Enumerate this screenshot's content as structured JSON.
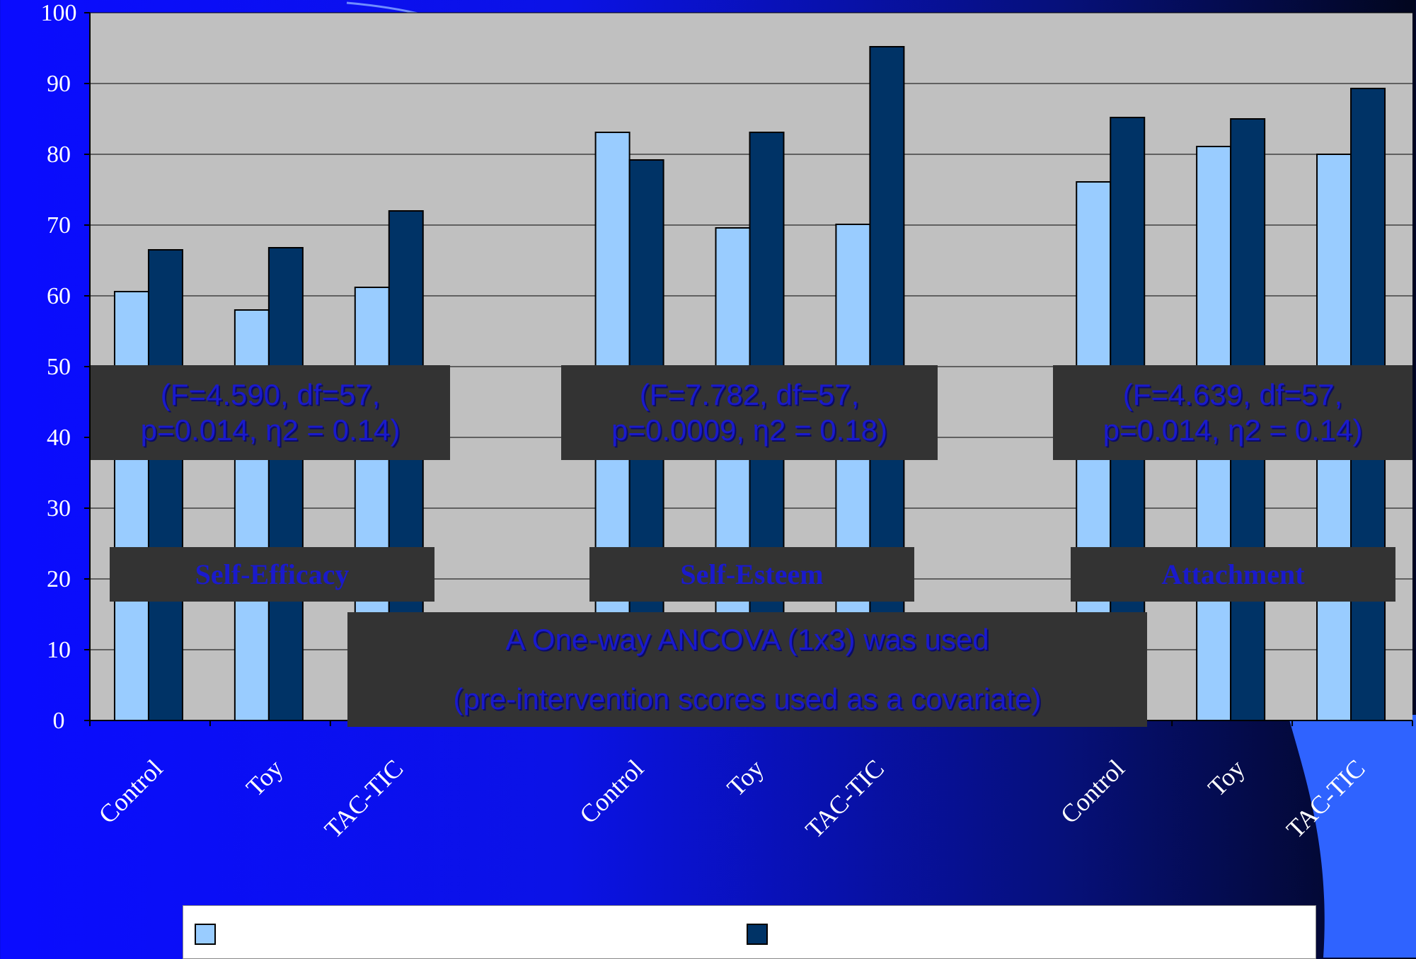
{
  "colors": {
    "series_pre": "#99ccff",
    "series_post": "#003366",
    "plot_bg": "#c0c0c0",
    "annotation_bg": "#333333",
    "annotation_text": "#1a1acc",
    "axis_text": "#ffffff"
  },
  "annotations": {
    "stat_self_efficacy": [
      "(F=4.590, df=57,",
      "p=0.014, η2 = 0.14)"
    ],
    "stat_self_esteem": [
      "(F=7.782, df=57,",
      "p=0.0009, η2 = 0.18)"
    ],
    "stat_attachment": [
      "(F=4.639, df=57,",
      "p=0.014, η2 = 0.14)"
    ],
    "method_note": [
      "A One-way ANCOVA (1x3) was used",
      "(pre-intervention scores used as a covariate)"
    ]
  },
  "chart_data": {
    "type": "bar",
    "title": "",
    "xlabel": "",
    "ylabel": "",
    "ylim": [
      0,
      100
    ],
    "yticks": [
      0,
      10,
      20,
      30,
      40,
      50,
      60,
      70,
      80,
      90,
      100
    ],
    "grid": true,
    "legend_position": "bottom",
    "groups": [
      {
        "name": "Self-Efficacy",
        "categories": [
          "Control",
          "Toy",
          "TAC-TIC"
        ]
      },
      {
        "name": "Self-Esteem",
        "categories": [
          "Control",
          "Toy",
          "TAC-TIC"
        ]
      },
      {
        "name": "Attachment",
        "categories": [
          "Control",
          "Toy",
          "TAC-TIC"
        ]
      }
    ],
    "categories": [
      "Control",
      "Toy",
      "TAC-TIC",
      "Control",
      "Toy",
      "TAC-TIC",
      "Control",
      "Toy",
      "TAC-TIC"
    ],
    "series": [
      {
        "values": [
          60.6,
          58.0,
          61.2,
          83.1,
          69.6,
          70.1,
          76.1,
          81.1,
          80.0
        ]
      },
      {
        "values": [
          66.5,
          66.8,
          72.0,
          79.2,
          83.1,
          95.2,
          85.2,
          85.0,
          89.3
        ]
      }
    ]
  }
}
